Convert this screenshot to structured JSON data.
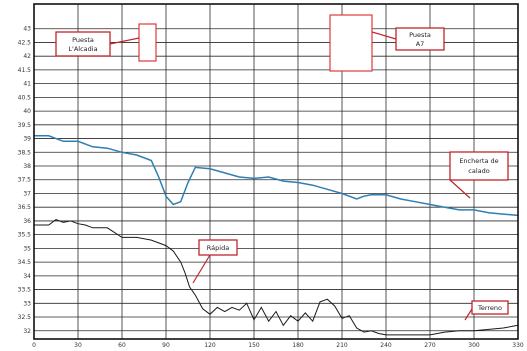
{
  "chart_data": {
    "type": "line",
    "xlim": [
      0,
      330
    ],
    "ylim": [
      31.7,
      43.9
    ],
    "xticks": [
      0,
      30,
      60,
      90,
      120,
      150,
      180,
      210,
      240,
      270,
      300,
      330
    ],
    "xtick_labels": [
      "0",
      "30",
      "60",
      "90",
      "120",
      "150",
      "180",
      "210",
      "240",
      "270",
      "300",
      "330"
    ],
    "yticks": [
      32,
      32.5,
      33,
      33.5,
      34,
      34.5,
      35,
      35.5,
      36,
      36.5,
      37,
      37.5,
      38,
      38.5,
      39,
      39.5,
      40,
      40.5,
      41,
      41.5,
      42,
      42.5,
      43
    ],
    "ytick_labels": [
      "32",
      "32.5",
      "33",
      "33.5",
      "34",
      "34.5",
      "35",
      "35.5",
      "36",
      "36.5",
      "37",
      "37.5",
      "38",
      "38.5",
      "39",
      "39.5",
      "40",
      "40.5",
      "41",
      "41.5",
      "42",
      "42.5",
      "43"
    ],
    "grid": true,
    "series": [
      {
        "color": "#2e7fb3",
        "x": [
          0,
          10,
          20,
          30,
          40,
          50,
          60,
          70,
          80,
          85,
          90,
          95,
          100,
          105,
          110,
          120,
          130,
          140,
          150,
          160,
          170,
          180,
          190,
          200,
          210,
          220,
          225,
          230,
          240,
          250,
          260,
          270,
          280,
          290,
          300,
          310,
          320,
          330
        ],
        "y": [
          39.1,
          39.1,
          38.9,
          38.9,
          38.7,
          38.65,
          38.5,
          38.4,
          38.2,
          37.6,
          36.9,
          36.6,
          36.7,
          37.4,
          37.95,
          37.9,
          37.75,
          37.6,
          37.55,
          37.6,
          37.45,
          37.4,
          37.3,
          37.15,
          37.0,
          36.8,
          36.9,
          36.95,
          36.95,
          36.8,
          36.7,
          36.6,
          36.5,
          36.4,
          36.4,
          36.3,
          36.25,
          36.2
        ]
      },
      {
        "color": "#1a1a1a",
        "x": [
          0,
          10,
          15,
          20,
          25,
          30,
          35,
          40,
          50,
          60,
          70,
          80,
          90,
          95,
          100,
          103,
          106,
          110,
          115,
          120,
          125,
          130,
          135,
          140,
          145,
          150,
          155,
          160,
          165,
          170,
          175,
          180,
          185,
          190,
          195,
          200,
          205,
          210,
          215,
          220,
          225,
          230,
          235,
          240,
          250,
          260,
          270,
          280,
          290,
          300,
          310,
          320,
          330
        ],
        "y": [
          35.85,
          35.85,
          36.05,
          35.95,
          36.0,
          35.9,
          35.85,
          35.75,
          35.75,
          35.4,
          35.4,
          35.3,
          35.1,
          34.9,
          34.5,
          34.1,
          33.6,
          33.3,
          32.8,
          32.6,
          32.85,
          32.7,
          32.85,
          32.75,
          33.0,
          32.4,
          32.85,
          32.35,
          32.7,
          32.2,
          32.55,
          32.35,
          32.65,
          32.35,
          33.05,
          33.15,
          32.9,
          32.45,
          32.55,
          32.1,
          31.95,
          32.0,
          31.9,
          31.85,
          31.85,
          31.85,
          31.85,
          31.95,
          32.0,
          32.0,
          32.05,
          32.1,
          32.2
        ]
      }
    ],
    "annotations": [
      {
        "text": "Puesta L'Alcadia",
        "x": 115,
        "y": 42.4
      },
      {
        "text": "Puesta A7",
        "x": 295,
        "y": 42.4
      },
      {
        "text": "Encherta de calado",
        "x": 305,
        "y": 36.4
      },
      {
        "text": "Rápida",
        "x": 107,
        "y": 33.4
      },
      {
        "text": "Terreno",
        "x": 300,
        "y": 31.95
      }
    ]
  }
}
